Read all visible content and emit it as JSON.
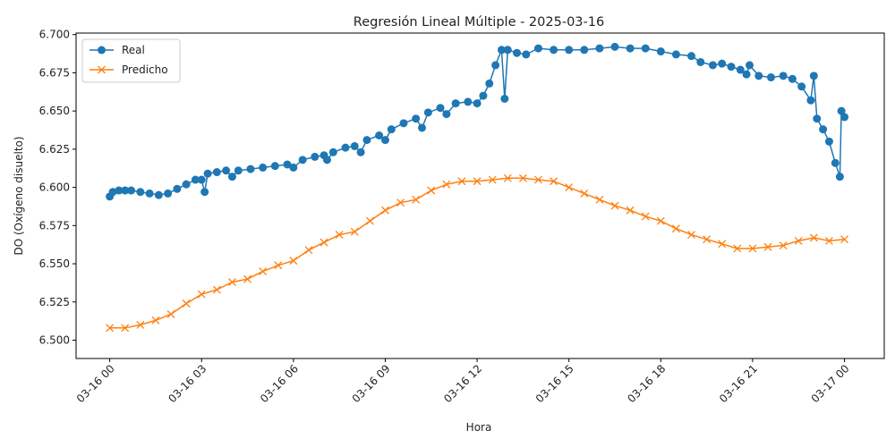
{
  "chart_data": {
    "type": "line",
    "title": "Regresión Lineal Múltiple - 2025-03-16",
    "xlabel": "Hora",
    "ylabel": "DO (Oxígeno disuelto)",
    "x_start": "2025-03-16 00:00",
    "x_end": "2025-03-17 00:00",
    "x_ticks": [
      "03-16 00",
      "03-16 03",
      "03-16 06",
      "03-16 09",
      "03-16 12",
      "03-16 15",
      "03-16 18",
      "03-16 21",
      "03-17 00"
    ],
    "y_ticks": [
      "6.500",
      "6.525",
      "6.550",
      "6.575",
      "6.600",
      "6.625",
      "6.650",
      "6.675",
      "6.700"
    ],
    "ylim": [
      6.488,
      6.701
    ],
    "xlim_hours": [
      -1.1,
      25.3
    ],
    "grid": false,
    "legend_position": "top-left",
    "series": [
      {
        "name": "Real",
        "color": "#1f77b4",
        "marker": "circle",
        "points": [
          [
            0,
            6.594
          ],
          [
            0.1,
            6.597
          ],
          [
            0.3,
            6.598
          ],
          [
            0.5,
            6.598
          ],
          [
            0.7,
            6.598
          ],
          [
            1.0,
            6.597
          ],
          [
            1.3,
            6.596
          ],
          [
            1.6,
            6.595
          ],
          [
            1.9,
            6.596
          ],
          [
            2.2,
            6.599
          ],
          [
            2.5,
            6.602
          ],
          [
            2.8,
            6.605
          ],
          [
            3.0,
            6.605
          ],
          [
            3.1,
            6.597
          ],
          [
            3.2,
            6.609
          ],
          [
            3.5,
            6.61
          ],
          [
            3.8,
            6.611
          ],
          [
            4.0,
            6.607
          ],
          [
            4.2,
            6.611
          ],
          [
            4.6,
            6.612
          ],
          [
            5.0,
            6.613
          ],
          [
            5.4,
            6.614
          ],
          [
            5.8,
            6.615
          ],
          [
            6.0,
            6.613
          ],
          [
            6.3,
            6.618
          ],
          [
            6.7,
            6.62
          ],
          [
            7.0,
            6.621
          ],
          [
            7.1,
            6.618
          ],
          [
            7.3,
            6.623
          ],
          [
            7.7,
            6.626
          ],
          [
            8.0,
            6.627
          ],
          [
            8.2,
            6.623
          ],
          [
            8.4,
            6.631
          ],
          [
            8.8,
            6.634
          ],
          [
            9.0,
            6.631
          ],
          [
            9.2,
            6.638
          ],
          [
            9.6,
            6.642
          ],
          [
            10.0,
            6.645
          ],
          [
            10.2,
            6.639
          ],
          [
            10.4,
            6.649
          ],
          [
            10.8,
            6.652
          ],
          [
            11.0,
            6.648
          ],
          [
            11.3,
            6.655
          ],
          [
            11.7,
            6.656
          ],
          [
            12.0,
            6.655
          ],
          [
            12.2,
            6.66
          ],
          [
            12.4,
            6.668
          ],
          [
            12.6,
            6.68
          ],
          [
            12.8,
            6.69
          ],
          [
            12.9,
            6.658
          ],
          [
            13.0,
            6.69
          ],
          [
            13.3,
            6.688
          ],
          [
            13.6,
            6.687
          ],
          [
            14.0,
            6.691
          ],
          [
            14.5,
            6.69
          ],
          [
            15.0,
            6.69
          ],
          [
            15.5,
            6.69
          ],
          [
            16.0,
            6.691
          ],
          [
            16.5,
            6.692
          ],
          [
            17.0,
            6.691
          ],
          [
            17.5,
            6.691
          ],
          [
            18.0,
            6.689
          ],
          [
            18.5,
            6.687
          ],
          [
            19.0,
            6.686
          ],
          [
            19.3,
            6.682
          ],
          [
            19.7,
            6.68
          ],
          [
            20.0,
            6.681
          ],
          [
            20.3,
            6.679
          ],
          [
            20.6,
            6.677
          ],
          [
            20.8,
            6.674
          ],
          [
            20.9,
            6.68
          ],
          [
            21.2,
            6.673
          ],
          [
            21.6,
            6.672
          ],
          [
            22.0,
            6.673
          ],
          [
            22.3,
            6.671
          ],
          [
            22.6,
            6.666
          ],
          [
            22.9,
            6.657
          ],
          [
            23.0,
            6.673
          ],
          [
            23.1,
            6.645
          ],
          [
            23.3,
            6.638
          ],
          [
            23.5,
            6.63
          ],
          [
            23.7,
            6.616
          ],
          [
            23.85,
            6.607
          ],
          [
            23.9,
            6.65
          ],
          [
            24.0,
            6.646
          ]
        ]
      },
      {
        "name": "Predicho",
        "color": "#ff7f0e",
        "marker": "x",
        "points": [
          [
            0,
            6.508
          ],
          [
            0.5,
            6.508
          ],
          [
            1.0,
            6.51
          ],
          [
            1.5,
            6.513
          ],
          [
            2.0,
            6.517
          ],
          [
            2.5,
            6.524
          ],
          [
            3.0,
            6.53
          ],
          [
            3.5,
            6.533
          ],
          [
            4.0,
            6.538
          ],
          [
            4.5,
            6.54
          ],
          [
            5.0,
            6.545
          ],
          [
            5.5,
            6.549
          ],
          [
            6.0,
            6.552
          ],
          [
            6.5,
            6.559
          ],
          [
            7.0,
            6.564
          ],
          [
            7.5,
            6.569
          ],
          [
            8.0,
            6.571
          ],
          [
            8.5,
            6.578
          ],
          [
            9.0,
            6.585
          ],
          [
            9.5,
            6.59
          ],
          [
            10.0,
            6.592
          ],
          [
            10.5,
            6.598
          ],
          [
            11.0,
            6.602
          ],
          [
            11.5,
            6.604
          ],
          [
            12.0,
            6.604
          ],
          [
            12.5,
            6.605
          ],
          [
            13.0,
            6.606
          ],
          [
            13.5,
            6.606
          ],
          [
            14.0,
            6.605
          ],
          [
            14.5,
            6.604
          ],
          [
            15.0,
            6.6
          ],
          [
            15.5,
            6.596
          ],
          [
            16.0,
            6.592
          ],
          [
            16.5,
            6.588
          ],
          [
            17.0,
            6.585
          ],
          [
            17.5,
            6.581
          ],
          [
            18.0,
            6.578
          ],
          [
            18.5,
            6.573
          ],
          [
            19.0,
            6.569
          ],
          [
            19.5,
            6.566
          ],
          [
            20.0,
            6.563
          ],
          [
            20.5,
            6.56
          ],
          [
            21.0,
            6.56
          ],
          [
            21.5,
            6.561
          ],
          [
            22.0,
            6.562
          ],
          [
            22.5,
            6.565
          ],
          [
            23.0,
            6.567
          ],
          [
            23.5,
            6.565
          ],
          [
            24.0,
            6.566
          ]
        ]
      }
    ]
  }
}
